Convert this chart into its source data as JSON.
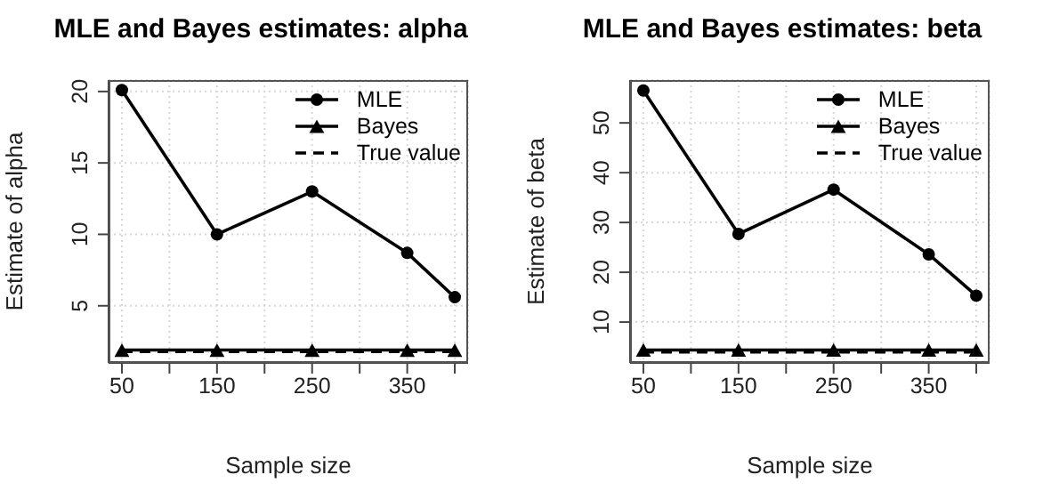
{
  "chart_data": [
    {
      "type": "line",
      "title": "MLE and Bayes estimates: alpha",
      "xlabel": "Sample size",
      "ylabel": "Estimate of alpha",
      "x": [
        50,
        150,
        250,
        350,
        400
      ],
      "xlim": [
        36,
        414
      ],
      "xticks": [
        50,
        {
          "value": 100,
          "label": null
        },
        150,
        {
          "value": 200,
          "label": null
        },
        250,
        {
          "value": 300,
          "label": null
        },
        350,
        {
          "value": 400,
          "label": null
        }
      ],
      "ylim": [
        1.0,
        20.8
      ],
      "yticks": [
        5,
        10,
        15,
        20
      ],
      "grid": true,
      "legend": "top right",
      "series": [
        {
          "name": "MLE",
          "color": "#000000",
          "values": [
            20.1,
            10.0,
            13.0,
            8.7,
            5.6
          ],
          "marker": "circle",
          "line_style": "solid"
        },
        {
          "name": "Bayes",
          "color": "#000000",
          "values": [
            1.9,
            1.9,
            1.9,
            1.9,
            1.9
          ],
          "marker": "triangle",
          "line_style": "solid"
        },
        {
          "name": "True value",
          "color": "#000000",
          "values": [
            1.8,
            1.8,
            1.8,
            1.8,
            1.8
          ],
          "marker": "none",
          "line_style": "dashed"
        }
      ]
    },
    {
      "type": "line",
      "title": "MLE and Bayes estimates: beta",
      "xlabel": "Sample size",
      "ylabel": "Estimate of beta",
      "x": [
        50,
        150,
        250,
        350,
        400
      ],
      "xlim": [
        36,
        414
      ],
      "xticks": [
        50,
        {
          "value": 100,
          "label": null
        },
        150,
        {
          "value": 200,
          "label": null
        },
        250,
        {
          "value": 300,
          "label": null
        },
        350,
        {
          "value": 400,
          "label": null
        }
      ],
      "ylim": [
        1.8,
        58.6
      ],
      "yticks": [
        10,
        20,
        30,
        40,
        50
      ],
      "grid": true,
      "legend": "top right",
      "series": [
        {
          "name": "MLE",
          "color": "#000000",
          "values": [
            56.5,
            27.7,
            36.6,
            23.6,
            15.3
          ],
          "marker": "circle",
          "line_style": "solid"
        },
        {
          "name": "Bayes",
          "color": "#000000",
          "values": [
            4.4,
            4.4,
            4.4,
            4.4,
            4.4
          ],
          "marker": "triangle",
          "line_style": "solid"
        },
        {
          "name": "True value",
          "color": "#000000",
          "values": [
            4.0,
            4.0,
            4.0,
            4.0,
            4.0
          ],
          "marker": "none",
          "line_style": "dashed"
        }
      ]
    }
  ]
}
